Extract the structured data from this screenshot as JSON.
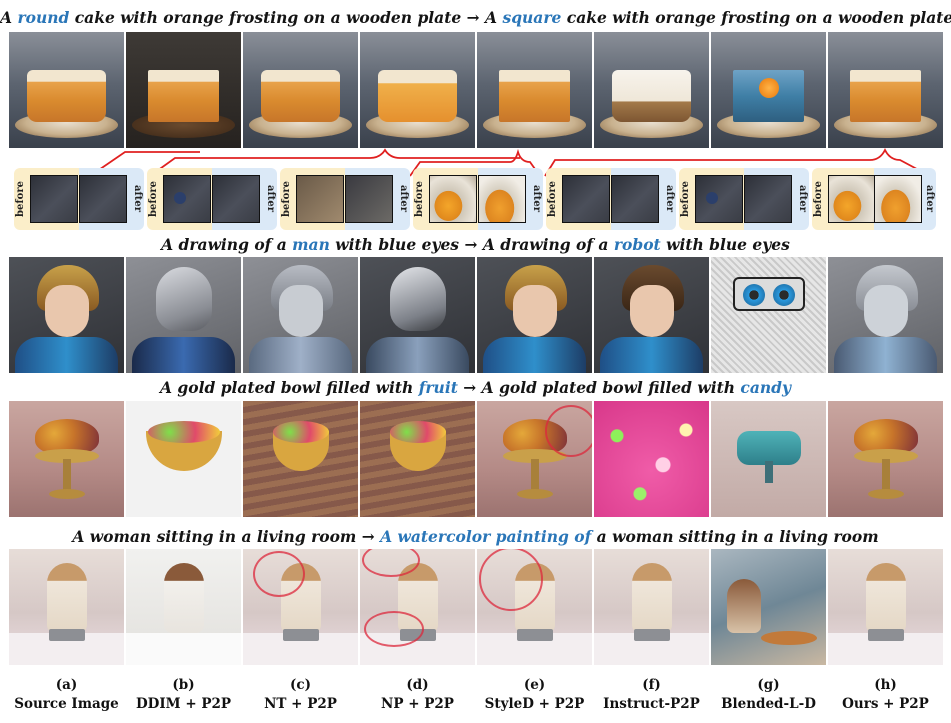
{
  "captions": {
    "row1": {
      "a": "A ",
      "hl1": "round",
      "b": " cake with orange frosting on a wooden plate",
      "arrow": " → ",
      "c": "A ",
      "hl2": "square",
      "d": " cake with orange frosting on a wooden plate"
    },
    "row2": {
      "a": "A drawing of a ",
      "hl1": "man",
      "b": " with blue eyes",
      "arrow": " → ",
      "c": "A drawing of a ",
      "hl2": "robot",
      "d": " with blue eyes"
    },
    "row3": {
      "a": "A gold plated bowl filled with ",
      "hl1": "fruit",
      "b": "",
      "arrow": " → ",
      "c": "A gold plated bowl filled with ",
      "hl2": "candy",
      "d": ""
    },
    "row4": {
      "a": "A woman sitting in a living room",
      "hl1": "",
      "b": "",
      "arrow": " → ",
      "c": "",
      "hl2": "A watercolor painting of",
      "d": " a woman sitting in a living room"
    }
  },
  "inset_labels": {
    "before": "before",
    "after": "after"
  },
  "columns": [
    {
      "letter": "(a)",
      "method": "Source Image"
    },
    {
      "letter": "(b)",
      "method": "DDIM + P2P"
    },
    {
      "letter": "(c)",
      "method": "NT + P2P"
    },
    {
      "letter": "(d)",
      "method": "NP + P2P"
    },
    {
      "letter": "(e)",
      "method": "StyleD + P2P"
    },
    {
      "letter": "(f)",
      "method": "Instruct-P2P"
    },
    {
      "letter": "(g)",
      "method": "Blended-L-D"
    },
    {
      "letter": "(h)",
      "method": "Ours + P2P"
    }
  ],
  "colors": {
    "highlight": "#2a76b8",
    "callout_line": "#e02020",
    "inset_before_bg": "#fbeec9",
    "inset_after_bg": "#dbe9f7",
    "ring": "#dc283c"
  }
}
